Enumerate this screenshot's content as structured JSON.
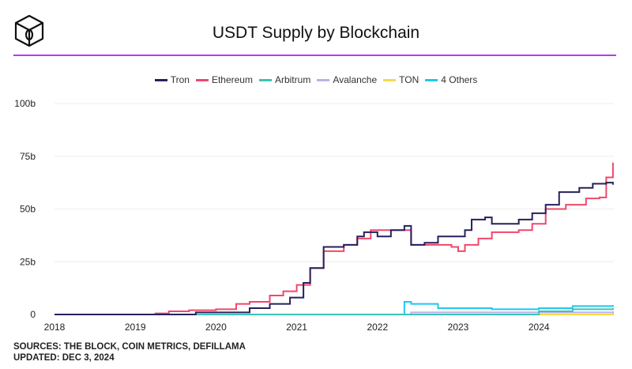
{
  "header": {
    "title": "USDT Supply by Blockchain",
    "logo": "The Block"
  },
  "footer": {
    "sources": "SOURCES: THE BLOCK, COIN METRICS, DEFILLAMA",
    "updated": "UPDATED: DEC 3, 2024"
  },
  "colors": {
    "accent_rule": "#b23cf0"
  },
  "chart_data": {
    "type": "line",
    "title": "USDT Supply by Blockchain",
    "xlabel": "",
    "ylabel": "",
    "x_ticks": [
      "2018",
      "2019",
      "2020",
      "2021",
      "2022",
      "2023",
      "2024"
    ],
    "y_ticks": [
      "0",
      "25b",
      "50b",
      "75b",
      "100b"
    ],
    "xlim": [
      "2018-01",
      "2024-12"
    ],
    "ylim": [
      0,
      100
    ],
    "y_unit": "billions",
    "grid": "horizontal",
    "legend_position": "top",
    "series": [
      {
        "name": "Tron",
        "color": "#26215c",
        "points": [
          [
            "2018-01",
            0
          ],
          [
            "2019-09",
            0
          ],
          [
            "2019-10",
            1
          ],
          [
            "2020-03",
            1
          ],
          [
            "2020-06",
            3
          ],
          [
            "2020-09",
            5
          ],
          [
            "2020-12",
            8
          ],
          [
            "2021-02",
            15
          ],
          [
            "2021-03",
            22
          ],
          [
            "2021-05",
            32
          ],
          [
            "2021-08",
            33
          ],
          [
            "2021-10",
            37
          ],
          [
            "2021-11",
            39
          ],
          [
            "2022-01",
            37
          ],
          [
            "2022-03",
            40
          ],
          [
            "2022-05",
            42
          ],
          [
            "2022-06",
            33
          ],
          [
            "2022-08",
            34
          ],
          [
            "2022-10",
            37
          ],
          [
            "2023-02",
            40
          ],
          [
            "2023-03",
            45
          ],
          [
            "2023-05",
            46
          ],
          [
            "2023-06",
            43
          ],
          [
            "2023-08",
            43
          ],
          [
            "2023-10",
            45
          ],
          [
            "2023-12",
            48
          ],
          [
            "2024-02",
            52
          ],
          [
            "2024-04",
            58
          ],
          [
            "2024-07",
            60
          ],
          [
            "2024-09",
            62
          ],
          [
            "2024-11",
            62.5
          ],
          [
            "2024-12",
            61.5
          ]
        ]
      },
      {
        "name": "Ethereum",
        "color": "#f0476b",
        "points": [
          [
            "2018-01",
            0
          ],
          [
            "2019-04",
            0.5
          ],
          [
            "2019-06",
            1.5
          ],
          [
            "2019-09",
            2
          ],
          [
            "2020-01",
            2.5
          ],
          [
            "2020-04",
            5
          ],
          [
            "2020-06",
            6
          ],
          [
            "2020-09",
            9
          ],
          [
            "2020-11",
            11
          ],
          [
            "2021-01",
            14
          ],
          [
            "2021-03",
            22
          ],
          [
            "2021-05",
            30
          ],
          [
            "2021-08",
            33
          ],
          [
            "2021-10",
            36
          ],
          [
            "2021-12",
            40
          ],
          [
            "2022-05",
            40
          ],
          [
            "2022-06",
            33
          ],
          [
            "2022-12",
            32
          ],
          [
            "2023-01",
            30
          ],
          [
            "2023-02",
            33
          ],
          [
            "2023-04",
            36
          ],
          [
            "2023-06",
            39
          ],
          [
            "2023-10",
            40
          ],
          [
            "2023-12",
            43
          ],
          [
            "2024-02",
            50
          ],
          [
            "2024-05",
            52
          ],
          [
            "2024-08",
            55
          ],
          [
            "2024-10",
            55.5
          ],
          [
            "2024-11",
            65
          ],
          [
            "2024-12",
            72
          ]
        ]
      },
      {
        "name": "Arbitrum",
        "color": "#3cc4b4",
        "points": [
          [
            "2018-01",
            0
          ],
          [
            "2023-06",
            0
          ],
          [
            "2024-01",
            1.5
          ],
          [
            "2024-06",
            2.5
          ],
          [
            "2024-12",
            3
          ]
        ]
      },
      {
        "name": "Avalanche",
        "color": "#b9b2e6",
        "points": [
          [
            "2018-01",
            0
          ],
          [
            "2022-05",
            0
          ],
          [
            "2022-06",
            1
          ],
          [
            "2024-12",
            1.5
          ]
        ]
      },
      {
        "name": "TON",
        "color": "#f7d84a",
        "points": [
          [
            "2018-01",
            0
          ],
          [
            "2024-05",
            0
          ],
          [
            "2024-12",
            1.5
          ]
        ]
      },
      {
        "name": "4 Others",
        "color": "#1ec8f0",
        "points": [
          [
            "2018-01",
            0
          ],
          [
            "2022-05",
            0
          ],
          [
            "2022-05",
            6
          ],
          [
            "2022-06",
            5
          ],
          [
            "2022-10",
            3
          ],
          [
            "2023-06",
            2.5
          ],
          [
            "2024-01",
            3
          ],
          [
            "2024-06",
            4
          ],
          [
            "2024-12",
            4.5
          ]
        ]
      }
    ]
  }
}
